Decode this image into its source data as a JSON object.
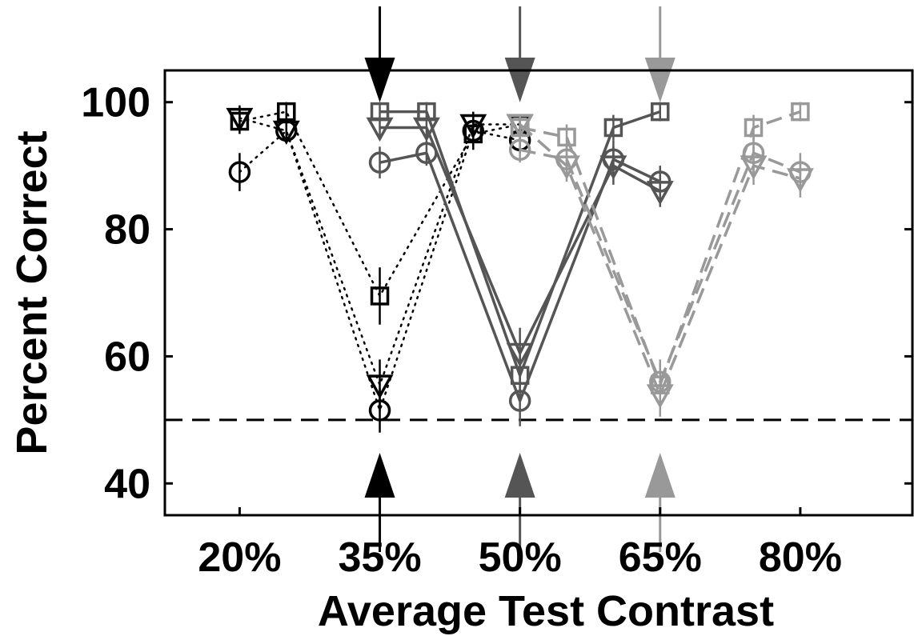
{
  "chart_data": {
    "type": "line",
    "xlabel": "Average Test Contrast",
    "ylabel": "Percent Correct",
    "ylim": [
      35,
      105
    ],
    "xlim": [
      12,
      92
    ],
    "yticks": [
      40,
      60,
      80,
      100
    ],
    "ytick_labels": [
      "40",
      "60",
      "80",
      "100"
    ],
    "xticks": [
      20,
      35,
      50,
      65,
      80
    ],
    "xtick_labels": [
      "20%",
      "35%",
      "50%",
      "65%",
      "80%"
    ],
    "chance_line": 50,
    "arrow_positions": [
      {
        "x": 35,
        "color": "#000000"
      },
      {
        "x": 50,
        "color": "#555555"
      },
      {
        "x": 65,
        "color": "#999999"
      }
    ],
    "series": [
      {
        "group": 1,
        "marker": "circle",
        "color": "#000000",
        "line": "dotted",
        "x": [
          20,
          25,
          35,
          45,
          50
        ],
        "y": [
          89,
          95.5,
          51.5,
          95.5,
          94
        ],
        "err": [
          3,
          1.5,
          3.5,
          2.5,
          2
        ]
      },
      {
        "group": 1,
        "marker": "square",
        "color": "#000000",
        "line": "dotted",
        "x": [
          20,
          25,
          35,
          45,
          50
        ],
        "y": [
          97,
          98.5,
          69.5,
          95,
          96.5
        ],
        "err": [
          2,
          1.5,
          4.5,
          2.5,
          1.5
        ]
      },
      {
        "group": 1,
        "marker": "triangle",
        "color": "#000000",
        "line": "dotted",
        "x": [
          20,
          25,
          35,
          45,
          50
        ],
        "y": [
          97.5,
          95.5,
          55.5,
          96.5,
          96.5
        ],
        "err": [
          2,
          1.5,
          4,
          2,
          1.5
        ]
      },
      {
        "group": 2,
        "marker": "circle",
        "color": "#555555",
        "line": "solid",
        "x": [
          35,
          40,
          50,
          60,
          65
        ],
        "y": [
          90.5,
          92,
          53,
          91,
          87.5
        ],
        "err": [
          2.5,
          2,
          4,
          3,
          2.5
        ]
      },
      {
        "group": 2,
        "marker": "square",
        "color": "#555555",
        "line": "solid",
        "x": [
          35,
          40,
          50,
          60,
          65
        ],
        "y": [
          98.5,
          98.5,
          57,
          96,
          98.5
        ],
        "err": [
          1.5,
          1.5,
          4,
          2,
          1.5
        ]
      },
      {
        "group": 2,
        "marker": "triangle",
        "color": "#555555",
        "line": "solid",
        "x": [
          35,
          40,
          50,
          60,
          65
        ],
        "y": [
          96,
          96,
          60.5,
          90,
          86
        ],
        "err": [
          1.5,
          1.5,
          4,
          3,
          2.5
        ]
      },
      {
        "group": 3,
        "marker": "circle",
        "color": "#999999",
        "line": "dashed",
        "x": [
          50,
          55,
          65,
          75,
          80
        ],
        "y": [
          92.5,
          91,
          56,
          92,
          89
        ],
        "err": [
          2,
          2,
          3.5,
          3,
          3
        ]
      },
      {
        "group": 3,
        "marker": "square",
        "color": "#999999",
        "line": "dashed",
        "x": [
          50,
          55,
          65,
          75,
          80
        ],
        "y": [
          96,
          94.5,
          55.5,
          96,
          98.5
        ],
        "err": [
          1.5,
          2,
          3.5,
          2,
          1.5
        ]
      },
      {
        "group": 3,
        "marker": "triangle",
        "color": "#999999",
        "line": "dashed",
        "x": [
          50,
          55,
          65,
          75,
          80
        ],
        "y": [
          96.5,
          90,
          54,
          90,
          88
        ],
        "err": [
          1.5,
          2.5,
          3.5,
          3,
          3
        ]
      }
    ]
  }
}
